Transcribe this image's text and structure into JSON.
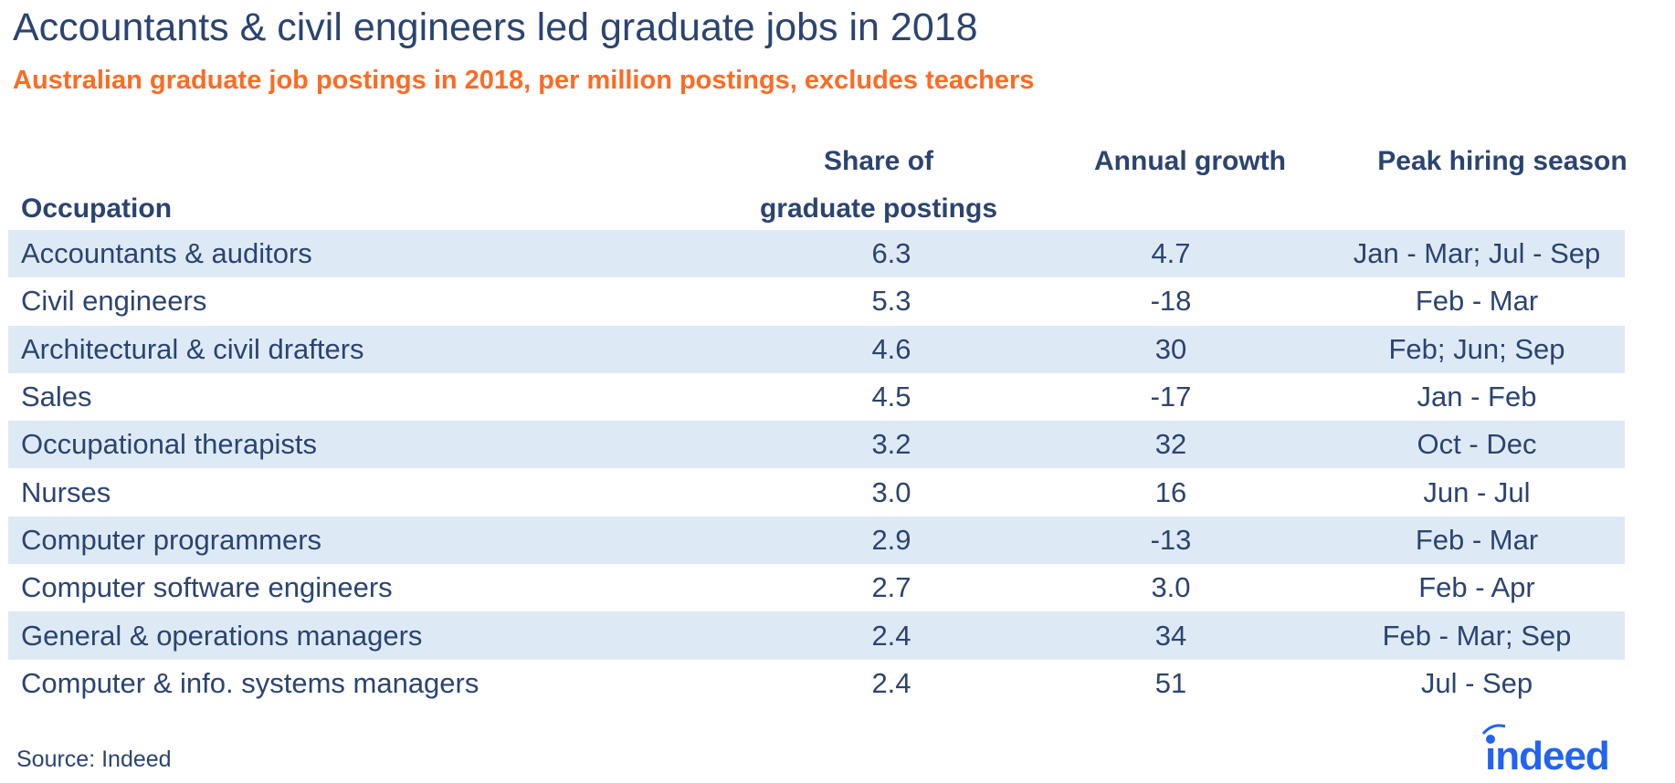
{
  "title": "Accountants & civil engineers led graduate jobs in 2018",
  "subtitle": "Australian graduate job postings in 2018, per million postings, excludes teachers",
  "columns": {
    "occupation": "Occupation",
    "share_line1": "Share of",
    "share_line2": "graduate postings",
    "growth": "Annual growth",
    "peak": "Peak hiring season"
  },
  "rows": [
    {
      "occupation": "Accountants & auditors",
      "share": "6.3",
      "growth": "4.7",
      "peak": "Jan - Mar; Jul - Sep"
    },
    {
      "occupation": "Civil engineers",
      "share": "5.3",
      "growth": "-18",
      "peak": "Feb - Mar"
    },
    {
      "occupation": "Architectural & civil drafters",
      "share": "4.6",
      "growth": "30",
      "peak": "Feb; Jun; Sep"
    },
    {
      "occupation": "Sales",
      "share": "4.5",
      "growth": "-17",
      "peak": "Jan - Feb"
    },
    {
      "occupation": "Occupational therapists",
      "share": "3.2",
      "growth": "32",
      "peak": "Oct - Dec"
    },
    {
      "occupation": "Nurses",
      "share": "3.0",
      "growth": "16",
      "peak": "Jun - Jul"
    },
    {
      "occupation": "Computer programmers",
      "share": "2.9",
      "growth": "-13",
      "peak": "Feb - Mar"
    },
    {
      "occupation": "Computer software engineers",
      "share": "2.7",
      "growth": "3.0",
      "peak": "Feb - Apr"
    },
    {
      "occupation": "General & operations managers",
      "share": "2.4",
      "growth": "34",
      "peak": "Feb - Mar; Sep"
    },
    {
      "occupation": "Computer & info. systems managers",
      "share": "2.4",
      "growth": "51",
      "peak": "Jul - Sep"
    }
  ],
  "source": "Source: Indeed",
  "logo": "indeed",
  "colors": {
    "title": "#2b4470",
    "subtitle": "#ff6a22",
    "band": "#ddeaf6",
    "logo": "#2164f3"
  }
}
